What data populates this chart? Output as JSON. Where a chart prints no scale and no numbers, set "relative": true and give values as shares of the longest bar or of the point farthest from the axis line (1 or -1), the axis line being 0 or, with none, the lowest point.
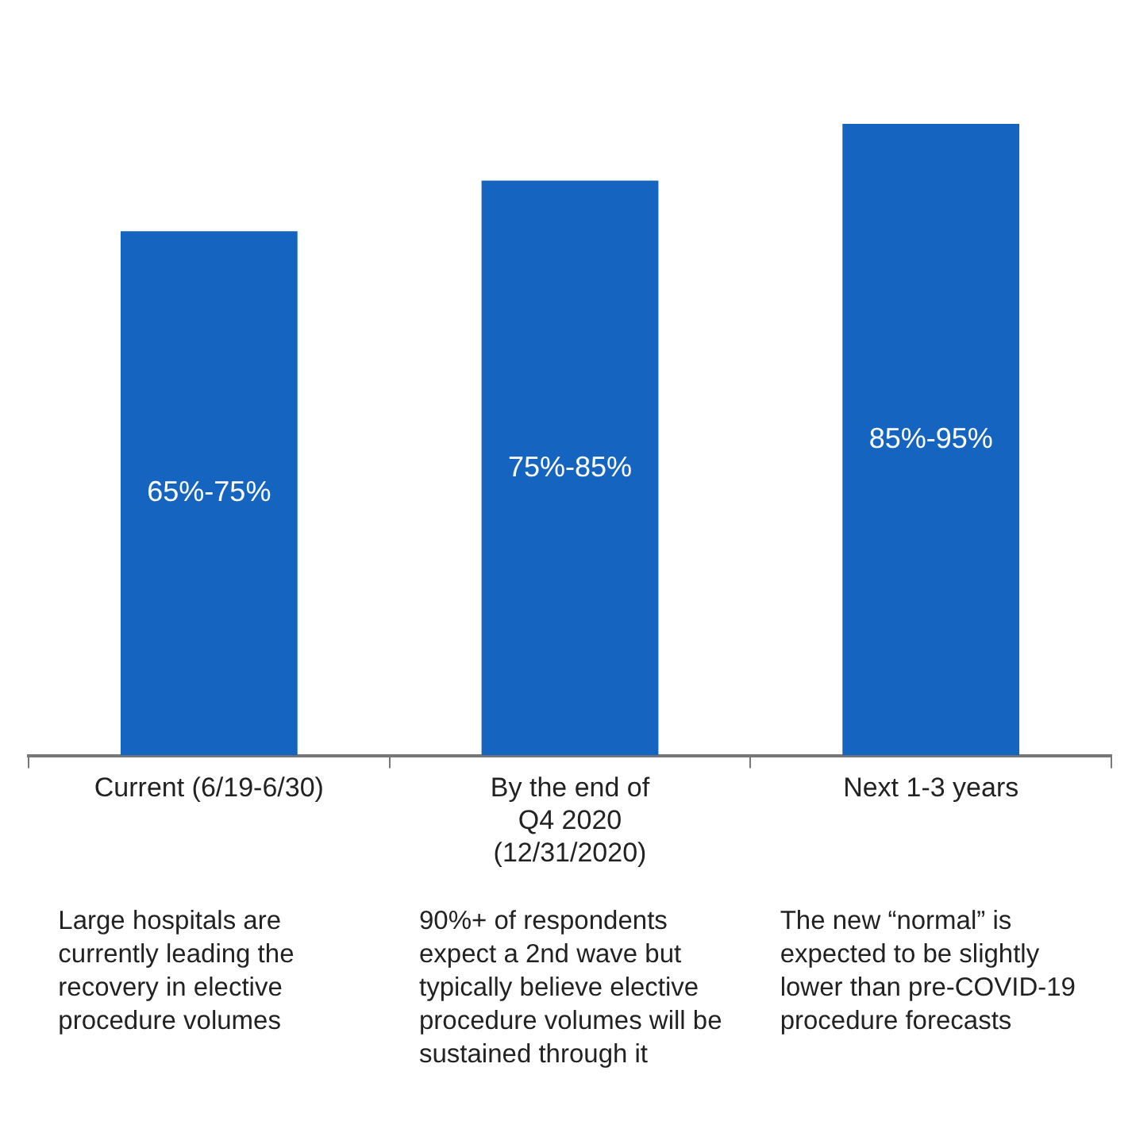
{
  "chart_data": {
    "type": "bar",
    "relative": true,
    "categories": [
      "Current (6/19-6/30)",
      "By the end of\nQ4 2020\n(12/31/2020)",
      "Next 1-3 years"
    ],
    "values": [
      0.83,
      0.91,
      1
    ],
    "color": "#1565c0",
    "grid": false,
    "legend": false,
    "annotations": [
      "65%-75%",
      "75%-85%",
      "85%-95%",
      "Large hospitals are currently leading the recovery in elective procedure volumes",
      "90%+ of respondents expect a 2nd wave but typically believe elective procedure volumes will be sustained through it",
      "The new “normal” is expected to be slightly lower than pre-COVID-19 procedure forecasts"
    ]
  }
}
